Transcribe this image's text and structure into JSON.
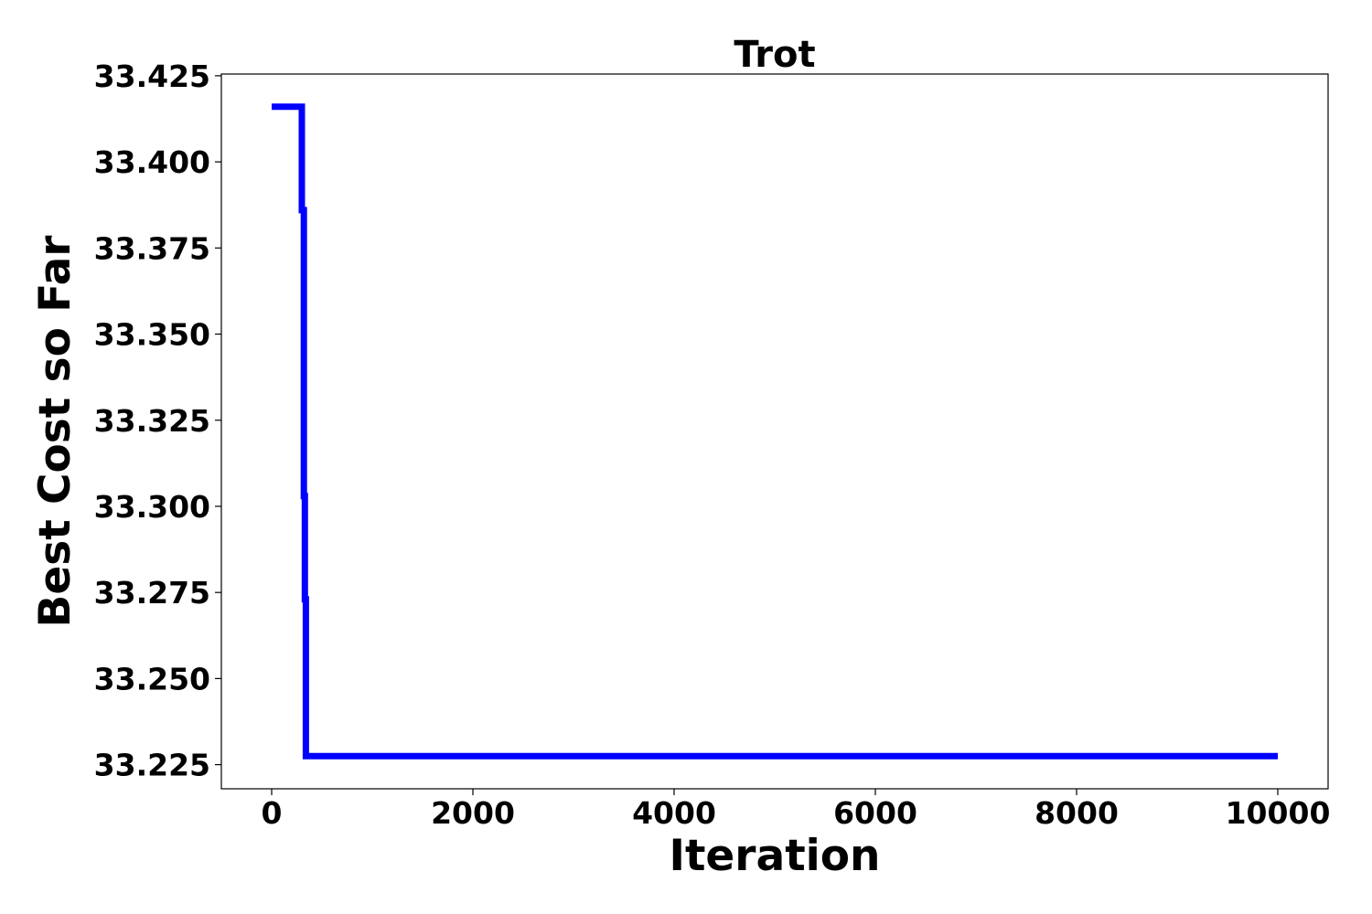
{
  "chart_data": {
    "type": "line",
    "title": "Trot",
    "xlabel": "Iteration",
    "ylabel": "Best Cost so Far",
    "xlim": [
      -500,
      10500
    ],
    "ylim": [
      33.218,
      33.4255
    ],
    "xticks": [
      0,
      2000,
      4000,
      6000,
      8000,
      10000
    ],
    "xtick_labels": [
      "0",
      "2000",
      "4000",
      "6000",
      "8000",
      "10000"
    ],
    "yticks": [
      33.225,
      33.25,
      33.275,
      33.3,
      33.325,
      33.35,
      33.375,
      33.4,
      33.425
    ],
    "ytick_labels": [
      "33.225",
      "33.250",
      "33.275",
      "33.300",
      "33.325",
      "33.350",
      "33.375",
      "33.400",
      "33.425"
    ],
    "grid": false,
    "series": [
      {
        "color": "#0000ff",
        "x": [
          0,
          300,
          300,
          320,
          320,
          330,
          330,
          340,
          340,
          10000
        ],
        "y": [
          33.416,
          33.416,
          33.386,
          33.386,
          33.303,
          33.303,
          33.273,
          33.273,
          33.2275,
          33.2275
        ]
      }
    ]
  }
}
